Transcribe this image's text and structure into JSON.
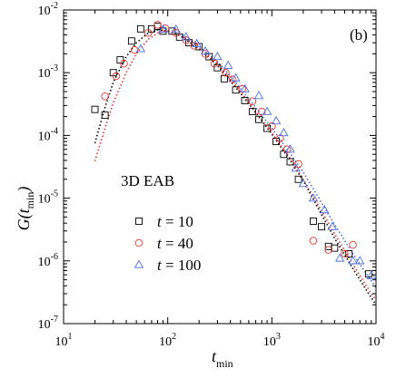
{
  "chart_data": {
    "type": "scatter",
    "panel_label": "(b)",
    "annotation": "3D EAB",
    "xscale": "log",
    "yscale": "log",
    "xlim": [
      10,
      10000
    ],
    "ylim": [
      1e-07,
      0.01
    ],
    "xlabel": {
      "main": "t",
      "sub": "min"
    },
    "ylabel": {
      "main": "G(",
      "var": "t",
      "sub": "min",
      "close": ")"
    },
    "x_ticks": [
      {
        "value": 10,
        "base": "10",
        "exp": "1"
      },
      {
        "value": 100,
        "base": "10",
        "exp": "2"
      },
      {
        "value": 1000,
        "base": "10",
        "exp": "3"
      },
      {
        "value": 10000,
        "base": "10",
        "exp": "4"
      }
    ],
    "y_ticks": [
      {
        "value": 1e-07,
        "base": "10",
        "exp": "-7"
      },
      {
        "value": 1e-06,
        "base": "10",
        "exp": "-6"
      },
      {
        "value": 1e-05,
        "base": "10",
        "exp": "-5"
      },
      {
        "value": 0.0001,
        "base": "10",
        "exp": "-4"
      },
      {
        "value": 0.001,
        "base": "10",
        "exp": "-3"
      },
      {
        "value": 0.01,
        "base": "10",
        "exp": "-2"
      }
    ],
    "legend_position": "center-left",
    "series": [
      {
        "name": "t = 10",
        "label_var": "t",
        "label_rest": " = 10",
        "marker": "square",
        "color": "#000000",
        "points": [
          [
            20,
            0.00026
          ],
          [
            25,
            0.00021
          ],
          [
            30,
            0.001
          ],
          [
            35,
            0.0016
          ],
          [
            45,
            0.0032
          ],
          [
            55,
            0.005
          ],
          [
            70,
            0.005
          ],
          [
            80,
            0.0055
          ],
          [
            90,
            0.0046
          ],
          [
            110,
            0.0046
          ],
          [
            130,
            0.0037
          ],
          [
            160,
            0.003
          ],
          [
            200,
            0.0026
          ],
          [
            250,
            0.0018
          ],
          [
            300,
            0.0012
          ],
          [
            350,
            0.0008
          ],
          [
            450,
            0.00053
          ],
          [
            550,
            0.00036
          ],
          [
            650,
            0.00024
          ],
          [
            750,
            0.00018
          ],
          [
            900,
            0.00013
          ],
          [
            1100,
            8e-05
          ],
          [
            1300,
            5e-05
          ],
          [
            1500,
            3.8e-05
          ],
          [
            1800,
            2e-05
          ],
          [
            2500,
            4.3e-06
          ],
          [
            3000,
            3.5e-06
          ],
          [
            3500,
            1.7e-06
          ],
          [
            4000,
            1.6e-06
          ],
          [
            5500,
            1.3e-06
          ],
          [
            8500,
            6.2e-07
          ]
        ]
      },
      {
        "name": "t = 40",
        "label_var": "t",
        "label_rest": " = 40",
        "marker": "circle",
        "color": "#e8332b",
        "points": [
          [
            25,
            0.00042
          ],
          [
            32,
            0.00088
          ],
          [
            38,
            0.0014
          ],
          [
            48,
            0.0023
          ],
          [
            65,
            0.0043
          ],
          [
            80,
            0.0058
          ],
          [
            95,
            0.0051
          ],
          [
            120,
            0.0043
          ],
          [
            150,
            0.0033
          ],
          [
            180,
            0.0027
          ],
          [
            230,
            0.002
          ],
          [
            280,
            0.0014
          ],
          [
            360,
            0.001
          ],
          [
            420,
            0.00078
          ],
          [
            520,
            0.00055
          ],
          [
            650,
            0.00035
          ],
          [
            800,
            0.00024
          ],
          [
            1000,
            0.00014
          ],
          [
            1200,
            9e-05
          ],
          [
            1400,
            6e-05
          ],
          [
            1800,
            3.5e-05
          ],
          [
            2500,
            2.1e-06
          ],
          [
            3500,
            1.5e-06
          ],
          [
            5000,
            1.3e-06
          ],
          [
            6000,
            1.8e-06
          ]
        ]
      },
      {
        "name": "t = 100",
        "label_var": "t",
        "label_rest": " = 100",
        "marker": "triangle",
        "color": "#4a6ee0",
        "points": [
          [
            55,
            0.0024
          ],
          [
            90,
            0.0049
          ],
          [
            120,
            0.0049
          ],
          [
            150,
            0.0037
          ],
          [
            190,
            0.0029
          ],
          [
            230,
            0.0022
          ],
          [
            300,
            0.0018
          ],
          [
            380,
            0.0013
          ],
          [
            450,
            0.00082
          ],
          [
            550,
            0.00055
          ],
          [
            750,
            0.00043
          ],
          [
            900,
            0.00024
          ],
          [
            1100,
            0.00017
          ],
          [
            1300,
            0.00011
          ],
          [
            1500,
            6e-05
          ],
          [
            1700,
            3e-05
          ],
          [
            2000,
            1.7e-05
          ],
          [
            2500,
            1e-05
          ],
          [
            3200,
            6.5e-06
          ],
          [
            3800,
            3.5e-06
          ],
          [
            4500,
            1.1e-06
          ],
          [
            6000,
            1e-06
          ],
          [
            7000,
            1e-06
          ],
          [
            9000,
            5.8e-07
          ]
        ]
      }
    ],
    "fits": [
      {
        "name": "fit-t10",
        "color": "#000000",
        "points": [
          [
            20,
            7.5e-05
          ],
          [
            25,
            0.00028
          ],
          [
            30,
            0.0007
          ],
          [
            40,
            0.0018
          ],
          [
            50,
            0.003
          ],
          [
            65,
            0.0043
          ],
          [
            80,
            0.0048
          ],
          [
            100,
            0.0046
          ],
          [
            130,
            0.0039
          ],
          [
            170,
            0.0029
          ],
          [
            220,
            0.0021
          ],
          [
            300,
            0.0013
          ],
          [
            400,
            0.00074
          ],
          [
            500,
            0.00047
          ],
          [
            700,
            0.00023
          ],
          [
            1000,
            0.000105
          ],
          [
            1500,
            4e-05
          ],
          [
            2000,
            1.9e-05
          ],
          [
            3000,
            5.5e-06
          ],
          [
            4000,
            2.3e-06
          ],
          [
            6000,
            7.5e-07
          ],
          [
            8500,
            3e-07
          ],
          [
            10000,
            2e-07
          ]
        ]
      },
      {
        "name": "fit-t40",
        "color": "#e8332b",
        "points": [
          [
            20,
            3.9e-05
          ],
          [
            25,
            0.00013
          ],
          [
            30,
            0.00033
          ],
          [
            40,
            0.001
          ],
          [
            50,
            0.002
          ],
          [
            65,
            0.0034
          ],
          [
            80,
            0.0043
          ],
          [
            100,
            0.0046
          ],
          [
            130,
            0.004
          ],
          [
            170,
            0.0031
          ],
          [
            220,
            0.0022
          ],
          [
            300,
            0.0014
          ],
          [
            400,
            0.0008
          ],
          [
            500,
            0.0005
          ],
          [
            700,
            0.00024
          ],
          [
            1000,
            0.00011
          ],
          [
            1500,
            4.3e-05
          ],
          [
            2000,
            2e-05
          ],
          [
            3000,
            6.3e-06
          ],
          [
            4000,
            2.7e-06
          ],
          [
            6000,
            8.8e-07
          ],
          [
            8500,
            3.5e-07
          ],
          [
            10000,
            2.4e-07
          ]
        ]
      },
      {
        "name": "fit-t100",
        "color": "#4a6ee0",
        "points": [
          [
            100,
            0.0046
          ],
          [
            130,
            0.0041
          ],
          [
            170,
            0.0032
          ],
          [
            220,
            0.0023
          ],
          [
            300,
            0.0015
          ],
          [
            400,
            0.00088
          ],
          [
            500,
            0.00056
          ],
          [
            700,
            0.00028
          ],
          [
            1000,
            0.00013
          ],
          [
            1500,
            5.2e-05
          ],
          [
            2000,
            2.6e-05
          ],
          [
            3000,
            8.5e-06
          ],
          [
            4000,
            3.8e-06
          ],
          [
            6000,
            1.3e-06
          ],
          [
            8500,
            5.5e-07
          ],
          [
            10000,
            3.8e-07
          ]
        ]
      }
    ]
  }
}
